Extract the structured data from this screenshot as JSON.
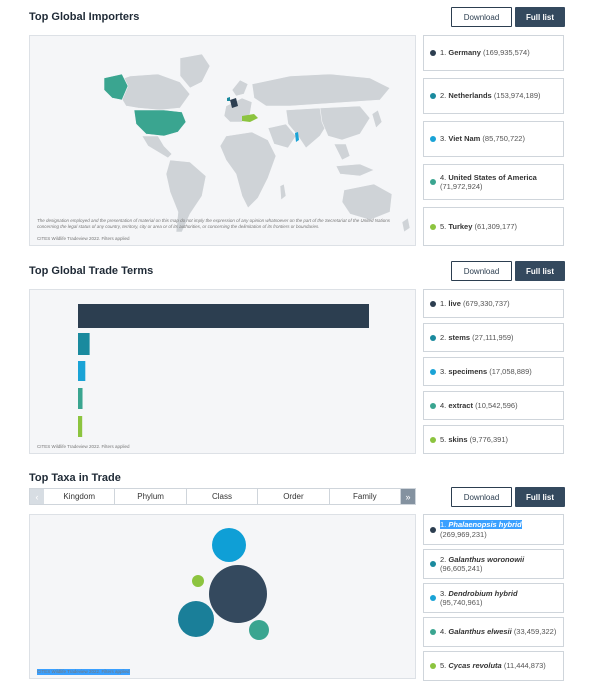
{
  "buttons": {
    "download": "Download",
    "full_list": "Full list"
  },
  "importers": {
    "title": "Top Global Importers",
    "disclaimer": "The designation employed and the presentation of material on this map do not imply the expression of any opinion whatsoever on the part of the Secretariat of the United Nations concerning the legal status of any country, territory, city or area or of its authorities, or concerning the delimitation of its frontiers or boundaries.",
    "caption": "CITES Wildlife Tradeview 2022. Filters applied",
    "items": [
      {
        "rank": "1.",
        "name": "Germany",
        "value": "(169,935,574)",
        "color": "#2c3e50"
      },
      {
        "rank": "2.",
        "name": "Netherlands",
        "value": "(153,974,189)",
        "color": "#1a8a9e"
      },
      {
        "rank": "3.",
        "name": "Viet Nam",
        "value": "(85,750,722)",
        "color": "#1aa3d6"
      },
      {
        "rank": "4.",
        "name": "United States of America",
        "value": "(71,972,924)",
        "color": "#3aa590"
      },
      {
        "rank": "5.",
        "name": "Turkey",
        "value": "(61,309,177)",
        "color": "#8cc43f"
      }
    ]
  },
  "terms": {
    "title": "Top Global Trade Terms",
    "caption": "CITES Wildlife Tradeview 2022. Filters applied",
    "items": [
      {
        "rank": "1.",
        "name": "live",
        "value": "(679,330,737)",
        "color": "#2c3e50"
      },
      {
        "rank": "2.",
        "name": "stems",
        "value": "(27,111,959)",
        "color": "#1a8a9e"
      },
      {
        "rank": "3.",
        "name": "specimens",
        "value": "(17,058,889)",
        "color": "#1aa3d6"
      },
      {
        "rank": "4.",
        "name": "extract",
        "value": "(10,542,596)",
        "color": "#3aa590"
      },
      {
        "rank": "5.",
        "name": "skins",
        "value": "(9,776,391)",
        "color": "#8cc43f"
      }
    ]
  },
  "taxa": {
    "title": "Top Taxa in Trade",
    "tabs": [
      "Kingdom",
      "Phylum",
      "Class",
      "Order",
      "Family"
    ],
    "caption": "CITES Wildlife Tradeview 2022. Filters applied",
    "items": [
      {
        "rank": "1.",
        "name": "Phalaenopsis hybrid",
        "value": "(269,969,231)",
        "color": "#2c3e50"
      },
      {
        "rank": "2.",
        "name": "Galanthus woronowii",
        "value": "(96,605,241)",
        "color": "#1a8a9e"
      },
      {
        "rank": "3.",
        "name": "Dendrobium hybrid",
        "value": "(95,740,961)",
        "color": "#1aa3d6"
      },
      {
        "rank": "4.",
        "name": "Galanthus elwesii",
        "value": "(33,459,322)",
        "color": "#3aa590"
      },
      {
        "rank": "5.",
        "name": "Cycas revoluta",
        "value": "(11,444,873)",
        "color": "#8cc43f"
      }
    ]
  },
  "chart_data": [
    {
      "type": "bar",
      "categories": [
        "live",
        "stems",
        "specimens",
        "extract",
        "skins"
      ],
      "values": [
        679330737,
        27111959,
        17058889,
        10542596,
        9776391
      ],
      "orientation": "horizontal"
    }
  ]
}
